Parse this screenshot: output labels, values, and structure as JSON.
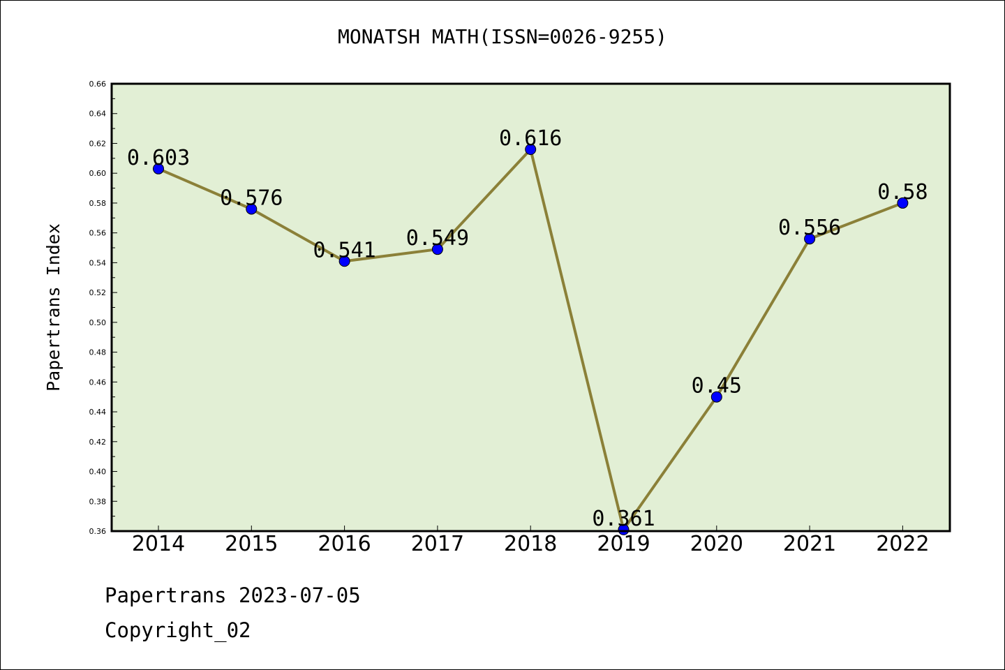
{
  "chart_data": {
    "type": "line",
    "title": "MONATSH MATH(ISSN=0026-9255)",
    "xlabel": "",
    "ylabel": "Papertrans Index",
    "categories": [
      "2014",
      "2015",
      "2016",
      "2017",
      "2018",
      "2019",
      "2020",
      "2021",
      "2022"
    ],
    "series": [
      {
        "values": [
          0.603,
          0.576,
          0.541,
          0.549,
          0.616,
          0.361,
          0.45,
          0.556,
          0.58
        ],
        "data_labels": [
          "0.603",
          "0.576",
          "0.541",
          "0.549",
          "0.616",
          "0.361",
          "0.45",
          "0.556",
          "0.58"
        ],
        "line_color": "#8b8038",
        "marker_color": "#0000ff"
      }
    ],
    "ylim": [
      0.36,
      0.66
    ],
    "yticks": [
      "0.36",
      "0.38",
      "0.40",
      "0.42",
      "0.44",
      "0.46",
      "0.48",
      "0.50",
      "0.52",
      "0.54",
      "0.56",
      "0.58",
      "0.60",
      "0.62",
      "0.64",
      "0.66"
    ],
    "grid": false,
    "legend": "none",
    "plot_background": "#e2efd5"
  },
  "footer": {
    "line1": "Papertrans 2023-07-05",
    "line2": "Copyright_02"
  }
}
